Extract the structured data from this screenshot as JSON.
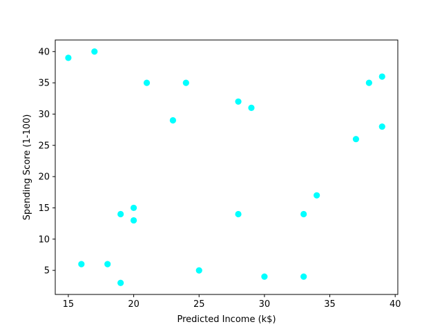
{
  "chart_data": {
    "type": "scatter",
    "title": "",
    "xlabel": "Predicted Income (k$)",
    "ylabel": "Spending Score (1-100)",
    "xlim": [
      14,
      40.2
    ],
    "ylim": [
      1.15,
      41.85
    ],
    "xticks": [
      15,
      20,
      25,
      30,
      35,
      40
    ],
    "yticks": [
      5,
      10,
      15,
      20,
      25,
      30,
      35,
      40
    ],
    "grid": false,
    "series": [
      {
        "color": "#00ffff",
        "points": [
          {
            "x": 15,
            "y": 39
          },
          {
            "x": 17,
            "y": 40
          },
          {
            "x": 21,
            "y": 35
          },
          {
            "x": 24,
            "y": 35
          },
          {
            "x": 28,
            "y": 32
          },
          {
            "x": 29,
            "y": 31
          },
          {
            "x": 23,
            "y": 29
          },
          {
            "x": 38,
            "y": 35
          },
          {
            "x": 39,
            "y": 36
          },
          {
            "x": 39,
            "y": 28
          },
          {
            "x": 37,
            "y": 26
          },
          {
            "x": 34,
            "y": 17
          },
          {
            "x": 20,
            "y": 15
          },
          {
            "x": 19,
            "y": 14
          },
          {
            "x": 20,
            "y": 13
          },
          {
            "x": 28,
            "y": 14
          },
          {
            "x": 33,
            "y": 14
          },
          {
            "x": 16,
            "y": 6
          },
          {
            "x": 18,
            "y": 6
          },
          {
            "x": 19,
            "y": 3
          },
          {
            "x": 25,
            "y": 5
          },
          {
            "x": 30,
            "y": 4
          },
          {
            "x": 33,
            "y": 4
          }
        ]
      }
    ]
  }
}
